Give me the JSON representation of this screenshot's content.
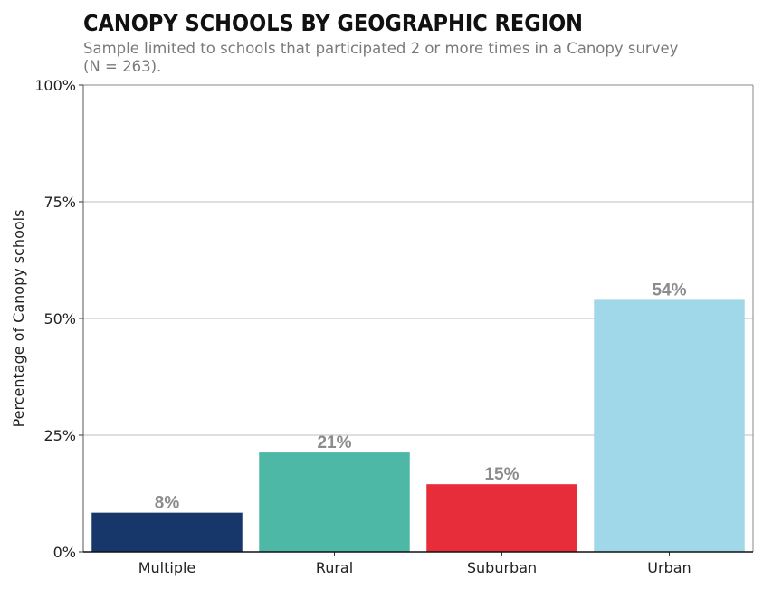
{
  "chart_data": {
    "type": "bar",
    "title": "CANOPY SCHOOLS BY GEOGRAPHIC REGION",
    "subtitle_lines": [
      "Sample limited to schools that participated 2 or more times in a Canopy survey",
      "(N = 263)."
    ],
    "xlabel": "",
    "ylabel": "Percentage of Canopy schools",
    "ylim": [
      0,
      100
    ],
    "y_ticks": [
      0,
      25,
      50,
      75,
      100
    ],
    "y_tick_labels": [
      "0%",
      "25%",
      "50%",
      "75%",
      "100%"
    ],
    "grid": true,
    "categories": [
      "Multiple",
      "Rural",
      "Suburban",
      "Urban"
    ],
    "values": [
      8.4,
      21.3,
      14.5,
      54.0
    ],
    "value_labels": [
      "8%",
      "21%",
      "15%",
      "54%"
    ],
    "colors": [
      "#17376b",
      "#4cb8a5",
      "#e72d3a",
      "#a0d8ea"
    ]
  }
}
